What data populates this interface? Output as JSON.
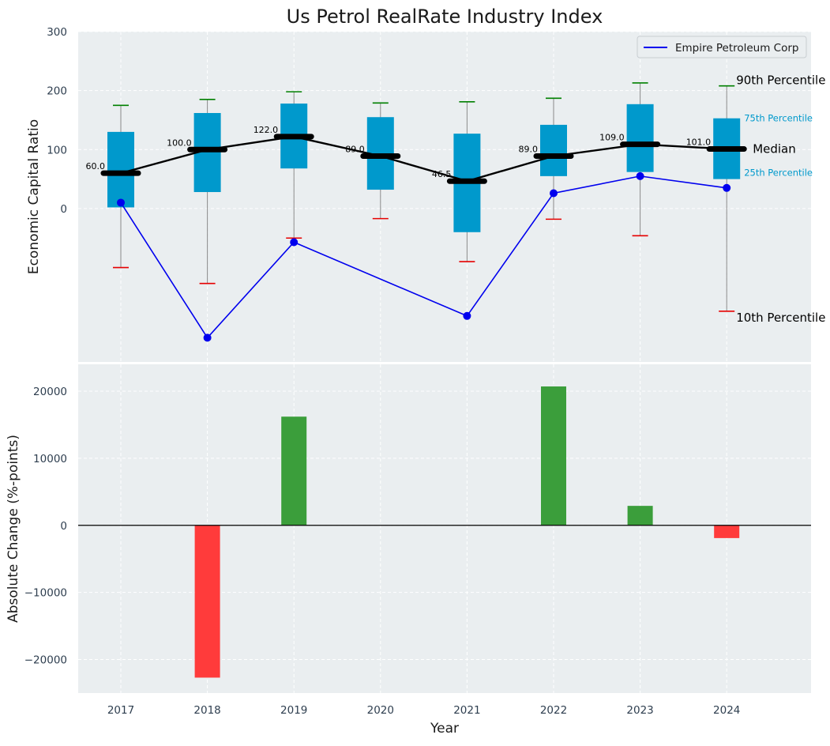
{
  "chart_data": [
    {
      "type": "box",
      "title": "Us Petrol RealRate Industry Index",
      "ylabel": "Economic Capital Ratio",
      "ylim": [
        -260,
        300
      ],
      "yticks": [
        0,
        100,
        200,
        300
      ],
      "grid": true,
      "categories": [
        "2017",
        "2018",
        "2019",
        "2020",
        "2021",
        "2022",
        "2023",
        "2024"
      ],
      "boxes": [
        {
          "year": "2017",
          "p10": -100,
          "q1": 2,
          "median": 60,
          "q3": 130,
          "p90": 175,
          "median_label": "60.0"
        },
        {
          "year": "2018",
          "p10": -127,
          "q1": 28,
          "median": 100,
          "q3": 162,
          "p90": 185,
          "median_label": "100.0"
        },
        {
          "year": "2019",
          "p10": -50,
          "q1": 68,
          "median": 122,
          "q3": 178,
          "p90": 198,
          "median_label": "122.0"
        },
        {
          "year": "2020",
          "p10": -17,
          "q1": 32,
          "median": 89,
          "q3": 155,
          "p90": 179,
          "median_label": "89.0"
        },
        {
          "year": "2021",
          "p10": -90,
          "q1": -40,
          "median": 46.5,
          "q3": 127,
          "p90": 181,
          "median_label": "46.5"
        },
        {
          "year": "2022",
          "p10": -18,
          "q1": 55,
          "median": 89,
          "q3": 142,
          "p90": 187,
          "median_label": "89.0"
        },
        {
          "year": "2023",
          "p10": -46,
          "q1": 62,
          "median": 109,
          "q3": 177,
          "p90": 213,
          "median_label": "109.0"
        },
        {
          "year": "2024",
          "p10": -174,
          "q1": 50,
          "median": 101,
          "q3": 153,
          "p90": 208,
          "median_label": "101.0"
        }
      ],
      "company_series": {
        "name": "Empire Petroleum Corp",
        "values": [
          10,
          -219,
          -57,
          null,
          -182,
          26,
          55,
          35
        ]
      },
      "annotations": {
        "p90": "90th Percentile",
        "q3": "75th Percentile",
        "median": "Median",
        "q1": "25th Percentile",
        "p10": "10th Percentile"
      },
      "legend": {
        "label": "Empire Petroleum Corp",
        "placement": "top-right"
      }
    },
    {
      "type": "bar",
      "ylabel": "Absolute Change (%-points)",
      "xlabel": "Year",
      "ylim": [
        -25000,
        24000
      ],
      "yticks": [
        -20000,
        -10000,
        0,
        10000,
        20000
      ],
      "ytick_labels": [
        "−20000",
        "−10000",
        "0",
        "10000",
        "20000"
      ],
      "grid": true,
      "categories": [
        "2017",
        "2018",
        "2019",
        "2020",
        "2021",
        "2022",
        "2023",
        "2024"
      ],
      "values": [
        0,
        -22700,
        16200,
        0,
        0,
        20700,
        2900,
        -1900
      ]
    }
  ],
  "colors": {
    "panel_bg": "#eaeef0",
    "grid": "#ffffff",
    "box_fill": "#0099cc",
    "whisker": "#8a8a8a",
    "p90_cap": "#008000",
    "p10_cap": "#e60000",
    "median_line": "#000000",
    "company_line": "#0000ee",
    "bar_positive": "#3b9e3b",
    "bar_negative": "#ff3b3b",
    "q_label": "#0099cc",
    "axis_text": "#2e3e4f"
  }
}
